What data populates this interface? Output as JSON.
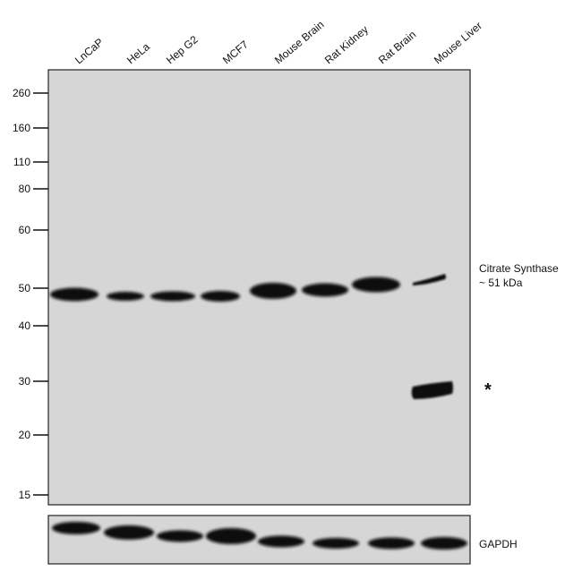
{
  "lane_labels": [
    "LnCaP",
    "HeLa",
    "Hep G2",
    "MCF7",
    "Mouse Brain",
    "Rat Kidney",
    "Rat Brain",
    "Mouse Liver"
  ],
  "mw_markers": [
    "260",
    "160",
    "110",
    "80",
    "60",
    "50",
    "40",
    "30",
    "20",
    "15"
  ],
  "annotations": {
    "target_name": "Citrate Synthase",
    "target_size": "~ 51 kDa",
    "nonspecific_marker": "*",
    "loading_control": "GAPDH"
  },
  "colors": {
    "membrane": "#d6d6d6",
    "band": "#0a0a0a",
    "border": "#222222"
  }
}
